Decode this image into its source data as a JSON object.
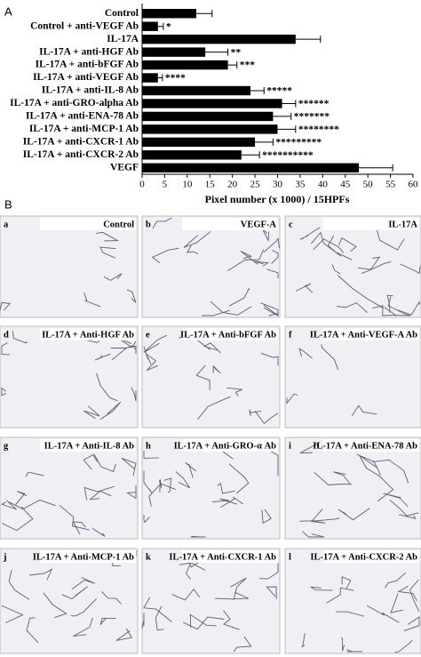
{
  "chart_data": {
    "type": "bar",
    "orientation": "horizontal",
    "categories": [
      "Control",
      "Control + anti-VEGF Ab",
      "IL-17A",
      "IL-17A + anti-HGF Ab",
      "IL-17A + anti-bFGF Ab",
      "IL-17A + anti-VEGF Ab",
      "IL-17A + anti-IL-8 Ab",
      "IL-17A + anti-GRO-alpha Ab",
      "IL-17A + anti-ENA-78 Ab",
      "IL-17A + anti-MCP-1 Ab",
      "IL-17A + anti-CXCR-1 Ab",
      "IL-17A + anti-CXCR-2 Ab",
      "VEGF"
    ],
    "values": [
      12,
      3.5,
      34,
      14,
      19,
      3.5,
      24,
      31,
      29,
      30,
      25,
      22,
      48
    ],
    "errors": [
      3.5,
      1.2,
      5.5,
      5,
      2,
      1,
      3,
      3,
      4,
      4,
      4,
      4,
      7.5
    ],
    "annotations": [
      null,
      "*",
      null,
      "**",
      "***",
      "****",
      "*****",
      "******",
      "*******",
      "********",
      "*********",
      "**********",
      null
    ],
    "color": "#000000",
    "xlabel": "Pixel number (x 1000) / 15HPFs",
    "xlim": [
      0,
      60
    ],
    "xticks": [
      0,
      5,
      10,
      15,
      20,
      25,
      30,
      35,
      40,
      45,
      50,
      55,
      60
    ]
  },
  "figure": {
    "panel_a_letter": "A",
    "panel_b_letter": "B",
    "panels": [
      {
        "letter": "a",
        "label": "Control"
      },
      {
        "letter": "b",
        "label": "VEGF-A"
      },
      {
        "letter": "c",
        "label": "IL-17A"
      },
      {
        "letter": "d",
        "label": "IL-17A + Anti-HGF Ab"
      },
      {
        "letter": "e",
        "label": "IL-17A + Anti-bFGF Ab"
      },
      {
        "letter": "f",
        "label": "IL-17A + Anti-VEGF-A Ab"
      },
      {
        "letter": "g",
        "label": "IL-17A + Anti-IL-8 Ab"
      },
      {
        "letter": "h",
        "label": "IL-17A + Anti-GRO-α Ab"
      },
      {
        "letter": "i",
        "label": "IL-17A + Anti-ENA-78 Ab"
      },
      {
        "letter": "j",
        "label": "IL-17A + Anti-MCP-1 Ab"
      },
      {
        "letter": "k",
        "label": "IL-17A + Anti-CXCR-1 Ab"
      },
      {
        "letter": "l",
        "label": "IL-17A + Anti-CXCR-2 Ab"
      }
    ]
  }
}
